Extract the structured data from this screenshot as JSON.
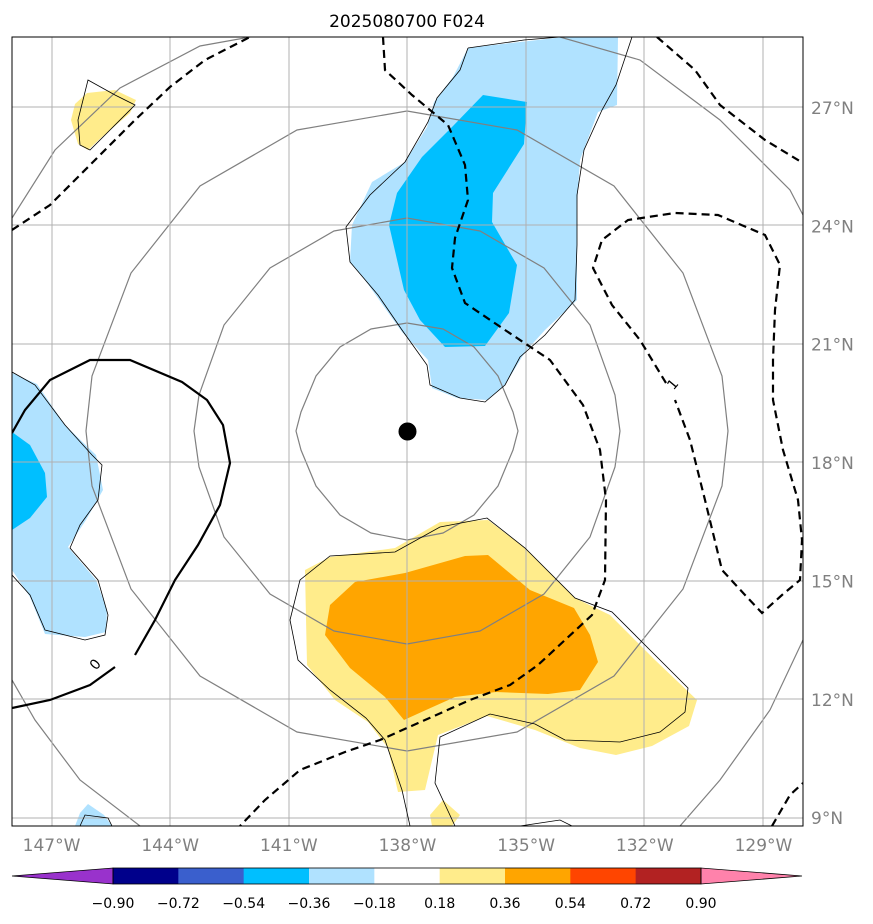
{
  "chart_data": {
    "type": "contour-map",
    "title": "2025080700 F024",
    "longitude_ticks": [
      "147°W",
      "144°W",
      "141°W",
      "138°W",
      "135°W",
      "132°W",
      "129°W"
    ],
    "longitude_values": [
      -147,
      -144,
      -141,
      -138,
      -135,
      -132,
      -129
    ],
    "latitude_ticks": [
      "27°N",
      "24°N",
      "21°N",
      "18°N",
      "15°N",
      "12°N",
      "9°N"
    ],
    "latitude_values": [
      27,
      24,
      21,
      18,
      15,
      12,
      9
    ],
    "lon_range": [
      -148,
      -128
    ],
    "lat_range": [
      8.8,
      28.8
    ],
    "gridlines": true,
    "center_marker": {
      "lon": -138,
      "lat": 18.8
    },
    "range_rings_deg": [
      2.7,
      5.5,
      8.3
    ],
    "contour_labels": [
      {
        "text": "0",
        "lon": -145.9,
        "lat": 12.9
      },
      {
        "text": "1",
        "lon": -131.3,
        "lat": 20.0
      }
    ],
    "colorbar": {
      "levels": [
        "−0.90",
        "−0.72",
        "−0.54",
        "−0.36",
        "−0.18",
        "0.18",
        "0.36",
        "0.54",
        "0.72",
        "0.90"
      ],
      "colors": [
        "#9932cc",
        "#00008b",
        "#3a5fcd",
        "#00bfff",
        "#b0e2ff",
        "#ffffff",
        "#ffec8b",
        "#ffa500",
        "#ff4500",
        "#b22222",
        "#ff82ab"
      ],
      "extend": "both"
    }
  }
}
